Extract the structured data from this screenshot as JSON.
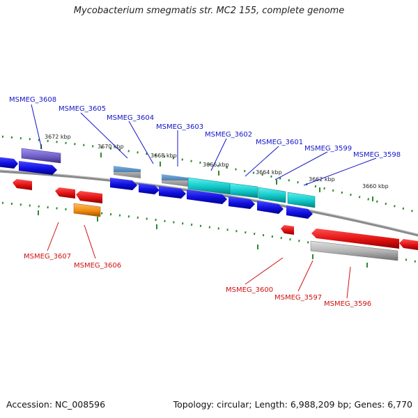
{
  "title": "Mycobacterium smegmatis str. MC2 155, complete genome",
  "accession": "Accession: NC_008596",
  "topology": "Topology: circular; Length: 6,988,209 bp; Genes: 6,770",
  "tick_labels": [
    "3672 kbp",
    "3670 kbp",
    "3668 kbp",
    "3666 kbp",
    "3664 kbp",
    "3662 kbp",
    "3660 kbp"
  ],
  "gene_labels": {
    "forward": [
      "MSMEG_3608",
      "MSMEG_3605",
      "MSMEG_3604",
      "MSMEG_3603",
      "MSMEG_3602",
      "MSMEG_3601",
      "MSMEG_3599",
      "MSMEG_3598"
    ],
    "reverse": [
      "MSMEG_3607",
      "MSMEG_3606",
      "MSMEG_3600",
      "MSMEG_3597",
      "MSMEG_3596"
    ]
  },
  "colors": {
    "forward_cds": "#1010e0",
    "reverse_cds": "#e01010",
    "forward_label": "#1414c8",
    "reverse_label": "#d01010",
    "tick": "#2a8a2a",
    "backbone": "#808080",
    "cyan_feature": "#10c8c8",
    "purple_feature": "#7060c8",
    "steel_feature": "#4a80b0",
    "orange_feature": "#f08c10",
    "gray_feature": "#b0b0b0"
  }
}
